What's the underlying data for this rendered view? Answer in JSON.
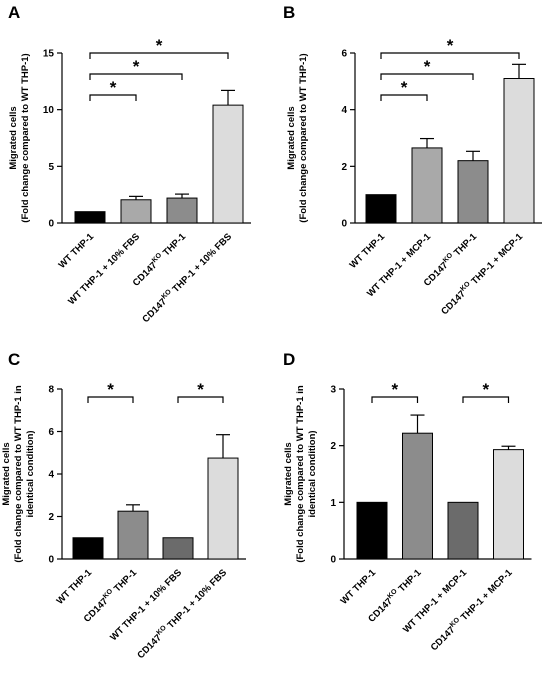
{
  "colors": {
    "black": "#000000",
    "light_gray": "#a9a9a9",
    "mid_gray": "#8c8c8c",
    "dark_gray": "#6b6b6b",
    "very_light_gray": "#dcdcdc"
  },
  "chart_data": [
    {
      "panel": "A",
      "type": "bar",
      "ylabel": "Migrated cells",
      "ylabel2": "(Fold change compared to WT THP-1)",
      "ylim": [
        0,
        15
      ],
      "yticks": [
        0,
        5,
        10,
        15
      ],
      "categories": [
        {
          "label": "WT THP-1"
        },
        {
          "label": "WT THP-1 + 10% FBS"
        },
        {
          "pre": "CD147",
          "sup": "KO",
          "post": " THP-1"
        },
        {
          "pre": "CD147",
          "sup": "KO",
          "post": " THP-1 + 10% FBS"
        }
      ],
      "values": [
        1.0,
        2.05,
        2.2,
        10.4
      ],
      "errors": [
        0,
        0.3,
        0.35,
        1.3
      ],
      "fills": [
        "black",
        "light_gray",
        "mid_gray",
        "very_light_gray"
      ],
      "significance": [
        {
          "from": 0,
          "to": 1,
          "level": 1,
          "label": "*"
        },
        {
          "from": 0,
          "to": 2,
          "level": 2,
          "label": "*"
        },
        {
          "from": 0,
          "to": 3,
          "level": 3,
          "label": "*"
        }
      ]
    },
    {
      "panel": "B",
      "type": "bar",
      "ylabel": "Migrated cells",
      "ylabel2": "(Fold change compared to WT THP-1)",
      "ylim": [
        0,
        6
      ],
      "yticks": [
        0,
        2,
        4,
        6
      ],
      "categories": [
        {
          "label": "WT THP-1"
        },
        {
          "label": "WT THP-1 + MCP-1"
        },
        {
          "pre": "CD147",
          "sup": "KO",
          "post": " THP-1"
        },
        {
          "pre": "CD147",
          "sup": "KO",
          "post": " THP-1 + MCP-1"
        }
      ],
      "values": [
        1.0,
        2.65,
        2.2,
        5.1
      ],
      "errors": [
        0,
        0.33,
        0.33,
        0.5
      ],
      "fills": [
        "black",
        "light_gray",
        "mid_gray",
        "very_light_gray"
      ],
      "significance": [
        {
          "from": 0,
          "to": 1,
          "level": 1,
          "label": "*"
        },
        {
          "from": 0,
          "to": 2,
          "level": 2,
          "label": "*"
        },
        {
          "from": 0,
          "to": 3,
          "level": 3,
          "label": "*"
        }
      ]
    },
    {
      "panel": "C",
      "type": "bar",
      "ylabel": "Migrated cells",
      "ylabel2": "(Fold change compared to WT THP-1 in",
      "ylabel3": "identical condition)",
      "ylim": [
        0,
        8
      ],
      "yticks": [
        0,
        2,
        4,
        6,
        8
      ],
      "categories": [
        {
          "label": "WT THP-1"
        },
        {
          "pre": "CD147",
          "sup": "KO",
          "post": " THP-1"
        },
        {
          "label": "WT THP-1 + 10% FBS"
        },
        {
          "pre": "CD147",
          "sup": "KO",
          "post": " THP-1 + 10% FBS"
        }
      ],
      "values": [
        1.0,
        2.25,
        1.0,
        4.75
      ],
      "errors": [
        0,
        0.3,
        0,
        1.1
      ],
      "fills": [
        "black",
        "mid_gray",
        "dark_gray",
        "very_light_gray"
      ],
      "significance": [
        {
          "from": 0,
          "to": 1,
          "level": 1,
          "label": "*"
        },
        {
          "from": 2,
          "to": 3,
          "level": 1,
          "label": "*"
        }
      ]
    },
    {
      "panel": "D",
      "type": "bar",
      "ylabel": "Migrated cells",
      "ylabel2": "(Fold change compared to WT THP-1 in",
      "ylabel3": "identical condition)",
      "ylim": [
        0,
        3
      ],
      "yticks": [
        0,
        1,
        2,
        3
      ],
      "categories": [
        {
          "label": "WT THP-1"
        },
        {
          "pre": "CD147",
          "sup": "KO",
          "post": " THP-1"
        },
        {
          "label": "WT THP-1 + MCP-1"
        },
        {
          "pre": "CD147",
          "sup": "KO",
          "post": " THP-1 + MCP-1"
        }
      ],
      "values": [
        1.0,
        2.22,
        1.0,
        1.93
      ],
      "errors": [
        0,
        0.32,
        0,
        0.06
      ],
      "fills": [
        "black",
        "mid_gray",
        "dark_gray",
        "very_light_gray"
      ],
      "significance": [
        {
          "from": 0,
          "to": 1,
          "level": 1,
          "label": "*"
        },
        {
          "from": 2,
          "to": 3,
          "level": 1,
          "label": "*"
        }
      ]
    }
  ]
}
